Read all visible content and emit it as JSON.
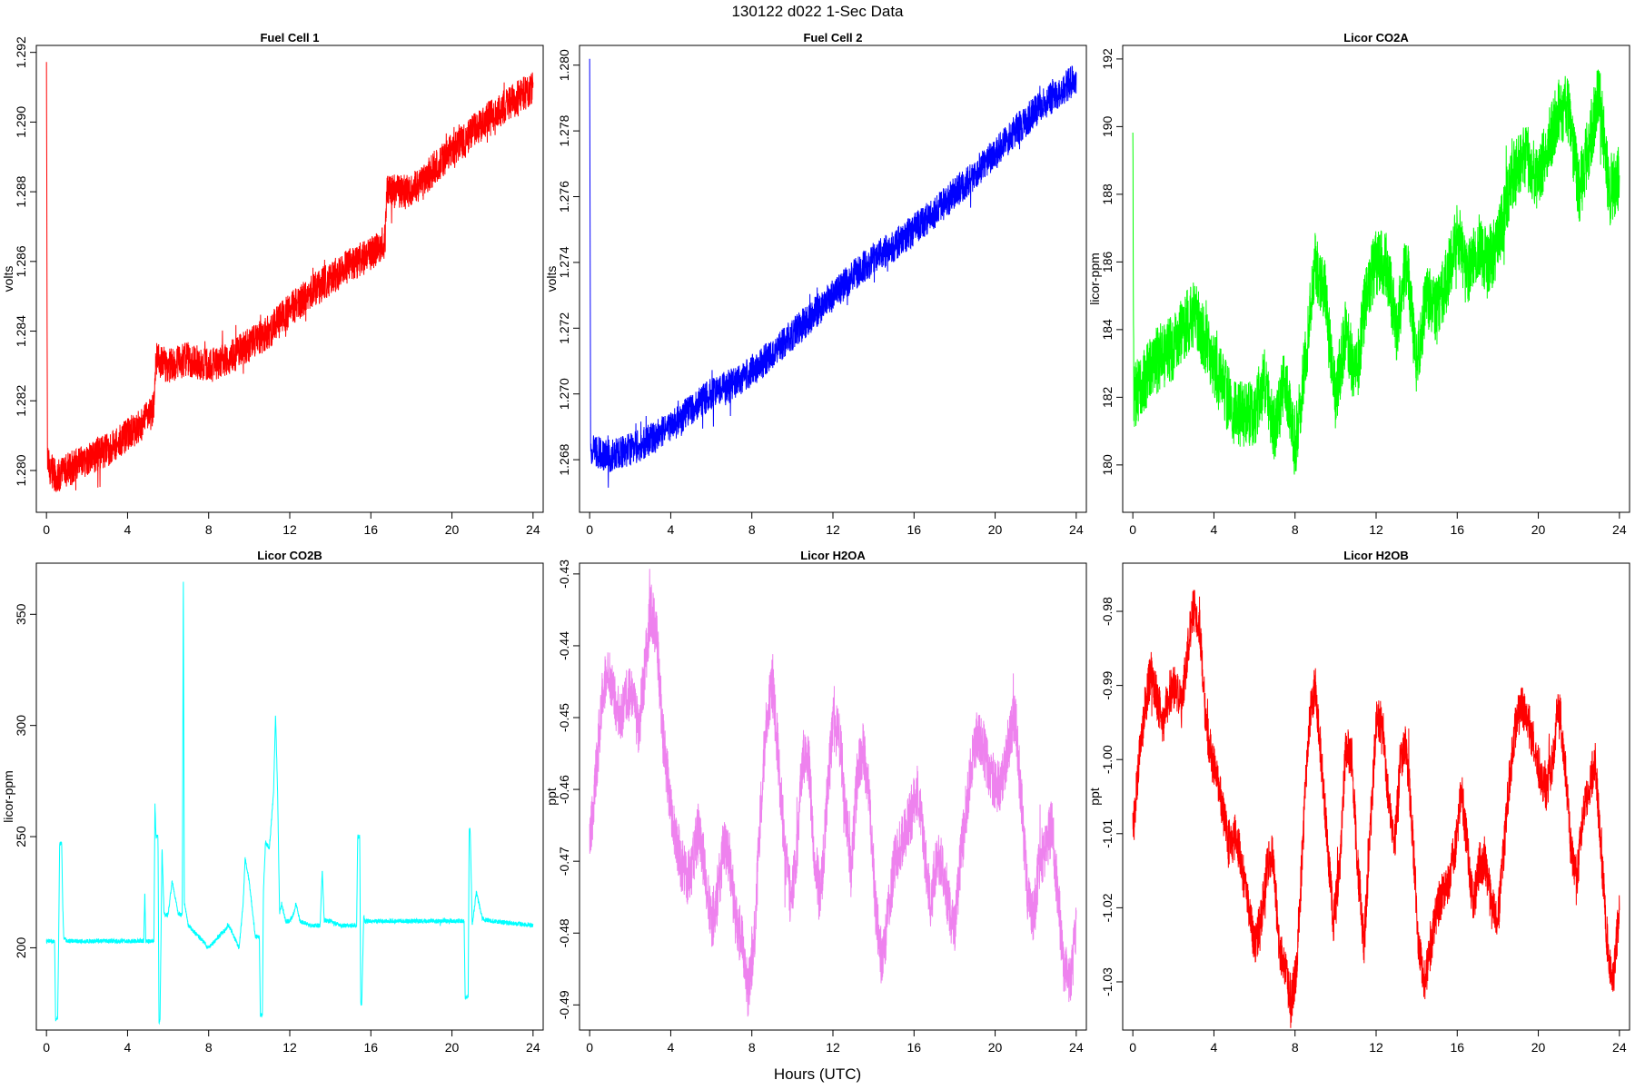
{
  "figure": {
    "title": "130122   d022   1-Sec Data",
    "xlabel": "Hours (UTC)"
  },
  "chart_data": [
    {
      "type": "line",
      "title": "Fuel Cell 1",
      "xlabel": "",
      "ylabel": "volts",
      "color": "#ff0000",
      "xlim": [
        -0.5,
        24.5
      ],
      "ylim": [
        1.2788,
        1.2922
      ],
      "xticks": [
        0,
        4,
        8,
        12,
        16,
        20,
        24
      ],
      "yticks": [
        1.28,
        1.282,
        1.284,
        1.286,
        1.288,
        1.29,
        1.292
      ],
      "ytick_labels": [
        "1.280",
        "1.282",
        "1.284",
        "1.286",
        "1.288",
        "1.290",
        "1.292"
      ],
      "grid": false,
      "series": [
        {
          "x": [
            0,
            0.05,
            0.5,
            1,
            2,
            3,
            4,
            5,
            5.3,
            5.4,
            6,
            7,
            8,
            9,
            10,
            11,
            12,
            13,
            14,
            15,
            16,
            16.7,
            16.8,
            18,
            19,
            20,
            21,
            22,
            23,
            24
          ],
          "y": [
            1.2916,
            1.2802,
            1.2798,
            1.28,
            1.2803,
            1.2806,
            1.281,
            1.2815,
            1.2818,
            1.2832,
            1.283,
            1.2832,
            1.283,
            1.2832,
            1.2836,
            1.284,
            1.2846,
            1.2851,
            1.2855,
            1.2859,
            1.2862,
            1.2866,
            1.288,
            1.288,
            1.2886,
            1.2892,
            1.2897,
            1.2902,
            1.2906,
            1.291
          ],
          "noise": 0.0005
        }
      ]
    },
    {
      "type": "line",
      "title": "Fuel Cell 2",
      "xlabel": "",
      "ylabel": "volts",
      "color": "#0000ff",
      "xlim": [
        -0.5,
        24.5
      ],
      "ylim": [
        1.2664,
        1.2806
      ],
      "xticks": [
        0,
        4,
        8,
        12,
        16,
        20,
        24
      ],
      "yticks": [
        1.268,
        1.27,
        1.272,
        1.274,
        1.276,
        1.278,
        1.28
      ],
      "ytick_labels": [
        "1.268",
        "1.270",
        "1.272",
        "1.274",
        "1.276",
        "1.278",
        "1.280"
      ],
      "grid": false,
      "series": [
        {
          "x": [
            0,
            0.05,
            1,
            2,
            3,
            4,
            5,
            6,
            7,
            8,
            9,
            10,
            11,
            12,
            13,
            14,
            15,
            16,
            17,
            18,
            19,
            20,
            21,
            22,
            23,
            24
          ],
          "y": [
            1.28,
            1.2683,
            1.2681,
            1.2683,
            1.2686,
            1.269,
            1.2695,
            1.27,
            1.2703,
            1.2707,
            1.2712,
            1.2718,
            1.2724,
            1.273,
            1.2736,
            1.2741,
            1.2745,
            1.275,
            1.2755,
            1.2761,
            1.2767,
            1.2773,
            1.278,
            1.2786,
            1.2791,
            1.2796
          ],
          "noise": 0.0005
        }
      ]
    },
    {
      "type": "line",
      "title": "Licor CO2A",
      "xlabel": "",
      "ylabel": "licor-ppm",
      "color": "#00ff00",
      "xlim": [
        -0.5,
        24.5
      ],
      "ylim": [
        178.6,
        192.4
      ],
      "xticks": [
        0,
        4,
        8,
        12,
        16,
        20,
        24
      ],
      "yticks": [
        180,
        182,
        184,
        186,
        188,
        190,
        192
      ],
      "ytick_labels": [
        "180",
        "182",
        "184",
        "186",
        "188",
        "190",
        "192"
      ],
      "grid": false,
      "series": [
        {
          "x": [
            0,
            0.05,
            1,
            2,
            3,
            4,
            5,
            6,
            6.5,
            7,
            7.5,
            8,
            8.5,
            9,
            9.5,
            10,
            10.5,
            11,
            11.5,
            12,
            12.5,
            13,
            13.5,
            14,
            14.5,
            15,
            15.5,
            16,
            16.5,
            17,
            17.5,
            18,
            18.5,
            19,
            19.5,
            20,
            20.5,
            21,
            21.5,
            22,
            22.5,
            23,
            23.5,
            24
          ],
          "y": [
            189.3,
            182,
            183,
            183.5,
            184.5,
            183,
            181.5,
            181.5,
            182.5,
            181,
            182.5,
            180.5,
            183,
            186,
            185,
            182,
            184,
            182.5,
            185,
            186,
            186,
            184,
            186,
            183,
            185,
            184.5,
            185.5,
            187,
            185.5,
            186.5,
            186,
            186.5,
            188,
            189,
            189,
            188.5,
            189.5,
            190.5,
            190.5,
            188,
            189.5,
            191,
            188,
            188.5
          ],
          "noise": 1.0
        }
      ]
    },
    {
      "type": "line",
      "title": "Licor CO2B",
      "xlabel": "",
      "ylabel": "licor-ppm",
      "color": "#00ffff",
      "xlim": [
        -0.5,
        24.5
      ],
      "ylim": [
        163,
        373
      ],
      "xticks": [
        0,
        4,
        8,
        12,
        16,
        20,
        24
      ],
      "yticks": [
        200,
        250,
        300,
        350
      ],
      "ytick_labels": [
        "200",
        "250",
        "300",
        "350"
      ],
      "grid": false,
      "series": [
        {
          "x": [
            0,
            0.4,
            0.45,
            0.55,
            0.6,
            0.65,
            0.75,
            0.8,
            0.85,
            1,
            2,
            3,
            4,
            4.8,
            4.85,
            4.9,
            5,
            5.3,
            5.35,
            5.4,
            5.5,
            5.55,
            5.6,
            5.7,
            5.8,
            6,
            6.2,
            6.5,
            6.7,
            6.75,
            6.8,
            7,
            7.5,
            8,
            8.5,
            9,
            9.5,
            9.7,
            9.8,
            9.9,
            10,
            10.3,
            10.5,
            10.55,
            10.65,
            10.7,
            10.8,
            11,
            11.2,
            11.3,
            11.4,
            11.5,
            11.6,
            11.8,
            12,
            12.2,
            12.3,
            12.5,
            13,
            13.5,
            13.6,
            13.7,
            14,
            14.5,
            15,
            15.3,
            15.35,
            15.45,
            15.5,
            15.55,
            15.65,
            15.7,
            16,
            17,
            18,
            19,
            20,
            20.6,
            20.65,
            20.8,
            20.85,
            20.9,
            21,
            21.2,
            21.5,
            22,
            23,
            24
          ],
          "y": [
            203,
            203,
            168,
            168,
            203,
            247,
            247,
            220,
            205,
            203,
            203,
            203,
            203,
            203,
            225,
            203,
            203,
            203,
            265,
            250,
            250,
            167,
            167,
            245,
            215,
            215,
            230,
            215,
            215,
            370,
            220,
            210,
            205,
            200,
            205,
            210,
            200,
            220,
            240,
            235,
            230,
            205,
            205,
            170,
            170,
            225,
            247,
            245,
            270,
            305,
            270,
            215,
            220,
            212,
            212,
            215,
            220,
            212,
            210,
            210,
            235,
            212,
            212,
            210,
            210,
            210,
            250,
            250,
            175,
            175,
            215,
            212,
            212,
            212,
            212,
            212,
            212,
            212,
            178,
            178,
            253,
            253,
            210,
            225,
            213,
            212,
            211,
            210
          ],
          "noise": 1.0
        }
      ]
    },
    {
      "type": "line",
      "title": "Licor H2OA",
      "xlabel": "",
      "ylabel": "ppt",
      "color": "#ee82ee",
      "xlim": [
        -0.5,
        24.5
      ],
      "ylim": [
        -0.4935,
        -0.4285
      ],
      "xticks": [
        0,
        4,
        8,
        12,
        16,
        20,
        24
      ],
      "yticks": [
        -0.49,
        -0.48,
        -0.47,
        -0.46,
        -0.45,
        -0.44,
        -0.43
      ],
      "ytick_labels": [
        "-0.49",
        "-0.48",
        "-0.47",
        "-0.46",
        "-0.45",
        "-0.44",
        "-0.43"
      ],
      "grid": false,
      "series": [
        {
          "x": [
            0,
            0.3,
            0.6,
            0.9,
            1.2,
            1.5,
            1.8,
            2.1,
            2.4,
            2.7,
            3.0,
            3.3,
            3.6,
            3.9,
            4.2,
            4.5,
            4.8,
            5.1,
            5.4,
            5.7,
            6.0,
            6.3,
            6.6,
            6.9,
            7.2,
            7.5,
            7.8,
            8.1,
            8.4,
            8.7,
            9.0,
            9.3,
            9.6,
            9.9,
            10.2,
            10.5,
            10.8,
            11.1,
            11.4,
            11.7,
            12.0,
            12.3,
            12.6,
            12.9,
            13.2,
            13.5,
            13.8,
            14.1,
            14.4,
            14.7,
            15.0,
            15.3,
            15.6,
            15.9,
            16.2,
            16.5,
            16.8,
            17.1,
            17.4,
            17.7,
            18.0,
            18.3,
            18.6,
            18.9,
            19.2,
            19.5,
            19.8,
            20.1,
            20.4,
            20.7,
            21.0,
            21.3,
            21.6,
            21.9,
            22.2,
            22.5,
            22.8,
            23.1,
            23.4,
            23.7,
            24.0
          ],
          "y": [
            -0.468,
            -0.458,
            -0.448,
            -0.443,
            -0.447,
            -0.45,
            -0.447,
            -0.446,
            -0.452,
            -0.444,
            -0.435,
            -0.438,
            -0.452,
            -0.46,
            -0.466,
            -0.47,
            -0.473,
            -0.47,
            -0.465,
            -0.472,
            -0.479,
            -0.475,
            -0.468,
            -0.47,
            -0.478,
            -0.481,
            -0.488,
            -0.482,
            -0.465,
            -0.45,
            -0.445,
            -0.455,
            -0.468,
            -0.475,
            -0.47,
            -0.455,
            -0.456,
            -0.47,
            -0.475,
            -0.462,
            -0.451,
            -0.452,
            -0.462,
            -0.472,
            -0.458,
            -0.454,
            -0.462,
            -0.476,
            -0.484,
            -0.478,
            -0.471,
            -0.468,
            -0.466,
            -0.463,
            -0.46,
            -0.468,
            -0.476,
            -0.47,
            -0.47,
            -0.476,
            -0.48,
            -0.47,
            -0.462,
            -0.455,
            -0.452,
            -0.455,
            -0.458,
            -0.46,
            -0.458,
            -0.453,
            -0.45,
            -0.462,
            -0.475,
            -0.478,
            -0.47,
            -0.468,
            -0.465,
            -0.475,
            -0.485,
            -0.487,
            -0.48
          ],
          "noise": 0.004
        }
      ]
    },
    {
      "type": "line",
      "title": "Licor H2OB",
      "xlabel": "",
      "ylabel": "ppt",
      "color": "#ff0000",
      "xlim": [
        -0.5,
        24.5
      ],
      "ylim": [
        -1.0365,
        -0.9735
      ],
      "xticks": [
        0,
        4,
        8,
        12,
        16,
        20,
        24
      ],
      "yticks": [
        -1.03,
        -1.02,
        -1.01,
        -1.0,
        -0.99,
        -0.98
      ],
      "ytick_labels": [
        "-1.03",
        "-1.02",
        "-1.01",
        "-1.00",
        "-0.99",
        "-0.98"
      ],
      "grid": false,
      "series": [
        {
          "x": [
            0,
            0.3,
            0.6,
            0.9,
            1.2,
            1.5,
            1.8,
            2.1,
            2.4,
            2.7,
            3.0,
            3.3,
            3.6,
            3.9,
            4.2,
            4.5,
            4.8,
            5.1,
            5.4,
            5.7,
            6.0,
            6.3,
            6.6,
            6.9,
            7.2,
            7.5,
            7.8,
            8.1,
            8.4,
            8.7,
            9.0,
            9.3,
            9.6,
            9.9,
            10.2,
            10.5,
            10.8,
            11.1,
            11.4,
            11.7,
            12.0,
            12.3,
            12.6,
            12.9,
            13.2,
            13.5,
            13.8,
            14.1,
            14.4,
            14.7,
            15.0,
            15.3,
            15.6,
            15.9,
            16.2,
            16.5,
            16.8,
            17.1,
            17.4,
            17.7,
            18.0,
            18.3,
            18.6,
            18.9,
            19.2,
            19.5,
            19.8,
            20.1,
            20.4,
            20.7,
            21.0,
            21.3,
            21.6,
            21.9,
            22.2,
            22.5,
            22.8,
            23.1,
            23.4,
            23.7,
            24.0
          ],
          "y": [
            -1.01,
            -1.0,
            -0.993,
            -0.988,
            -0.992,
            -0.995,
            -0.991,
            -0.99,
            -0.993,
            -0.985,
            -0.979,
            -0.982,
            -0.995,
            -1.0,
            -1.003,
            -1.008,
            -1.012,
            -1.01,
            -1.015,
            -1.02,
            -1.025,
            -1.022,
            -1.015,
            -1.012,
            -1.025,
            -1.028,
            -1.033,
            -1.028,
            -1.01,
            -0.995,
            -0.99,
            -1.0,
            -1.012,
            -1.022,
            -1.015,
            -0.998,
            -1.0,
            -1.015,
            -1.025,
            -1.01,
            -0.995,
            -0.995,
            -1.005,
            -1.012,
            -1.0,
            -0.998,
            -1.01,
            -1.025,
            -1.03,
            -1.025,
            -1.02,
            -1.018,
            -1.016,
            -1.012,
            -1.004,
            -1.012,
            -1.02,
            -1.014,
            -1.014,
            -1.02,
            -1.022,
            -1.012,
            -1.002,
            -0.995,
            -0.993,
            -0.995,
            -0.998,
            -1.002,
            -1.004,
            -1.0,
            -0.992,
            -1.0,
            -1.012,
            -1.016,
            -1.008,
            -1.004,
            -1.0,
            -1.012,
            -1.025,
            -1.03,
            -1.02
          ],
          "noise": 0.003
        }
      ]
    }
  ]
}
